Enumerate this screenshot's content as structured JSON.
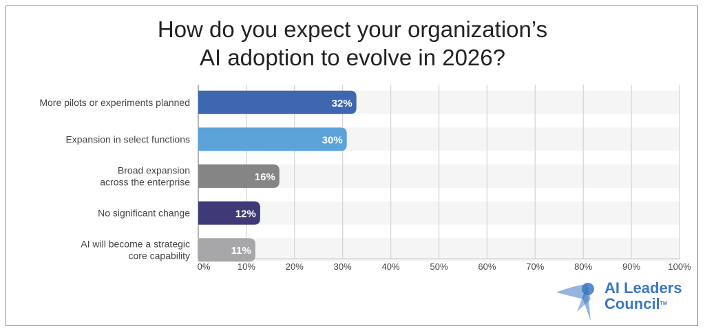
{
  "chart_data": {
    "type": "bar",
    "orientation": "horizontal",
    "title": [
      "How do you expect your organization’s",
      "AI adoption to evolve in 2026?"
    ],
    "categories": [
      [
        "More pilots or experiments planned"
      ],
      [
        "Expansion in select functions"
      ],
      [
        "Broad expansion",
        "across the enterprise"
      ],
      [
        "No significant change"
      ],
      [
        "AI will become a strategic",
        "core capability"
      ]
    ],
    "values": [
      32,
      30,
      16,
      12,
      11
    ],
    "data_labels": [
      "32%",
      "30%",
      "16%",
      "12%",
      "11%"
    ],
    "colors": [
      "#3f66b0",
      "#5ba3d9",
      "#858585",
      "#3e3a78",
      "#a7a7a9"
    ],
    "xlim": [
      0,
      100
    ],
    "x_ticks": [
      "0%",
      "10%",
      "20%",
      "30%",
      "40%",
      "50%",
      "60%",
      "70%",
      "80%",
      "90%",
      "100%"
    ],
    "grid": true
  },
  "logo": {
    "line1": "AI Leaders",
    "line2": "Council",
    "tm": "TM",
    "color": "#3a78c2"
  }
}
